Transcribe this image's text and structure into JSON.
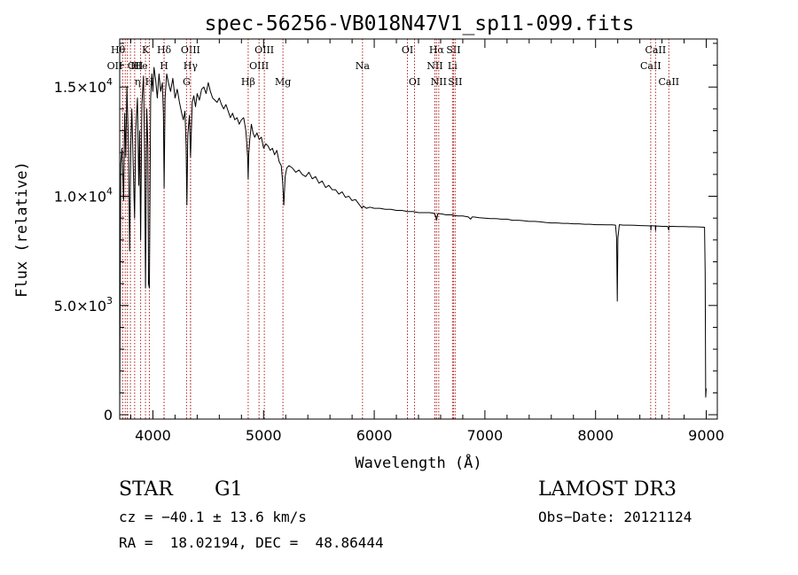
{
  "chart_data": {
    "type": "line",
    "title": "spec-56256-VB018N47V1_sp11-099.fits",
    "xlabel": "Wavelength (Å)",
    "ylabel": "Flux (relative)",
    "xlim": [
      3700,
      9100
    ],
    "ylim": [
      -200,
      17200
    ],
    "x_ticks": [
      4000,
      5000,
      6000,
      7000,
      8000,
      9000
    ],
    "x_tick_labels": [
      "4000",
      "5000",
      "6000",
      "7000",
      "8000",
      "9000"
    ],
    "y_ticks": [
      {
        "value": 0,
        "mantissa": "0",
        "exp": ""
      },
      {
        "value": 5000,
        "mantissa": "5.0×10",
        "exp": "3"
      },
      {
        "value": 10000,
        "mantissa": "1.0×10",
        "exp": "4"
      },
      {
        "value": 15000,
        "mantissa": "1.5×10",
        "exp": "4"
      }
    ],
    "series": [
      {
        "name": "spectrum",
        "points": [
          [
            3700,
            200
          ],
          [
            3710,
            11500
          ],
          [
            3720,
            12200
          ],
          [
            3735,
            9800
          ],
          [
            3745,
            13800
          ],
          [
            3755,
            11800
          ],
          [
            3765,
            15000
          ],
          [
            3780,
            12200
          ],
          [
            3790,
            7500
          ],
          [
            3800,
            12300
          ],
          [
            3810,
            14000
          ],
          [
            3820,
            11800
          ],
          [
            3835,
            9000
          ],
          [
            3845,
            13000
          ],
          [
            3860,
            14500
          ],
          [
            3872,
            10500
          ],
          [
            3880,
            13000
          ],
          [
            3889,
            8000
          ],
          [
            3900,
            14200
          ],
          [
            3915,
            15500
          ],
          [
            3925,
            12000
          ],
          [
            3933,
            5800
          ],
          [
            3945,
            14000
          ],
          [
            3955,
            12200
          ],
          [
            3960,
            6000
          ],
          [
            3968,
            5800
          ],
          [
            3980,
            14500
          ],
          [
            3990,
            15600
          ],
          [
            4000,
            14800
          ],
          [
            4010,
            15900
          ],
          [
            4025,
            15300
          ],
          [
            4040,
            14500
          ],
          [
            4055,
            15600
          ],
          [
            4070,
            14800
          ],
          [
            4085,
            15200
          ],
          [
            4095,
            13800
          ],
          [
            4101,
            10400
          ],
          [
            4110,
            14500
          ],
          [
            4125,
            15600
          ],
          [
            4140,
            15200
          ],
          [
            4160,
            14800
          ],
          [
            4180,
            15400
          ],
          [
            4200,
            14500
          ],
          [
            4220,
            14900
          ],
          [
            4240,
            14300
          ],
          [
            4260,
            13800
          ],
          [
            4275,
            13500
          ],
          [
            4290,
            13900
          ],
          [
            4300,
            12300
          ],
          [
            4307,
            9600
          ],
          [
            4315,
            12800
          ],
          [
            4330,
            13700
          ],
          [
            4340,
            11800
          ],
          [
            4355,
            14300
          ],
          [
            4370,
            14600
          ],
          [
            4385,
            14100
          ],
          [
            4400,
            14700
          ],
          [
            4420,
            14400
          ],
          [
            4440,
            14900
          ],
          [
            4460,
            15000
          ],
          [
            4480,
            14700
          ],
          [
            4500,
            15200
          ],
          [
            4520,
            14800
          ],
          [
            4540,
            14500
          ],
          [
            4560,
            14400
          ],
          [
            4580,
            14300
          ],
          [
            4600,
            14500
          ],
          [
            4620,
            14200
          ],
          [
            4640,
            14000
          ],
          [
            4660,
            14200
          ],
          [
            4680,
            13900
          ],
          [
            4700,
            13600
          ],
          [
            4720,
            13800
          ],
          [
            4740,
            13500
          ],
          [
            4760,
            13600
          ],
          [
            4780,
            13300
          ],
          [
            4800,
            13500
          ],
          [
            4820,
            13600
          ],
          [
            4840,
            13000
          ],
          [
            4850,
            12300
          ],
          [
            4856,
            11800
          ],
          [
            4861,
            10800
          ],
          [
            4866,
            11900
          ],
          [
            4875,
            12600
          ],
          [
            4890,
            13300
          ],
          [
            4905,
            12900
          ],
          [
            4920,
            12700
          ],
          [
            4940,
            12900
          ],
          [
            4960,
            12600
          ],
          [
            4980,
            12700
          ],
          [
            5000,
            12200
          ],
          [
            5020,
            12400
          ],
          [
            5040,
            12300
          ],
          [
            5060,
            12100
          ],
          [
            5080,
            12200
          ],
          [
            5100,
            11900
          ],
          [
            5120,
            12100
          ],
          [
            5140,
            11600
          ],
          [
            5160,
            11400
          ],
          [
            5172,
            10700
          ],
          [
            5183,
            9600
          ],
          [
            5195,
            10900
          ],
          [
            5210,
            11300
          ],
          [
            5230,
            11400
          ],
          [
            5260,
            11300
          ],
          [
            5290,
            11100
          ],
          [
            5320,
            11200
          ],
          [
            5350,
            11000
          ],
          [
            5380,
            10900
          ],
          [
            5410,
            11100
          ],
          [
            5440,
            10800
          ],
          [
            5470,
            10900
          ],
          [
            5500,
            10600
          ],
          [
            5530,
            10700
          ],
          [
            5560,
            10400
          ],
          [
            5590,
            10500
          ],
          [
            5620,
            10300
          ],
          [
            5650,
            10300
          ],
          [
            5680,
            10100
          ],
          [
            5710,
            10200
          ],
          [
            5740,
            9950
          ],
          [
            5770,
            10000
          ],
          [
            5800,
            9800
          ],
          [
            5830,
            9850
          ],
          [
            5860,
            9650
          ],
          [
            5890,
            9450
          ],
          [
            5900,
            9550
          ],
          [
            5930,
            9450
          ],
          [
            5960,
            9500
          ],
          [
            6000,
            9450
          ],
          [
            6050,
            9450
          ],
          [
            6100,
            9400
          ],
          [
            6150,
            9400
          ],
          [
            6200,
            9350
          ],
          [
            6250,
            9350
          ],
          [
            6300,
            9300
          ],
          [
            6350,
            9300
          ],
          [
            6400,
            9250
          ],
          [
            6450,
            9250
          ],
          [
            6500,
            9250
          ],
          [
            6540,
            9220
          ],
          [
            6555,
            9100
          ],
          [
            6563,
            8900
          ],
          [
            6575,
            9200
          ],
          [
            6600,
            9200
          ],
          [
            6650,
            9150
          ],
          [
            6700,
            9150
          ],
          [
            6750,
            9100
          ],
          [
            6800,
            9100
          ],
          [
            6850,
            9050
          ],
          [
            6870,
            8950
          ],
          [
            6885,
            9050
          ],
          [
            6900,
            9050
          ],
          [
            6950,
            9020
          ],
          [
            7000,
            9000
          ],
          [
            7050,
            8980
          ],
          [
            7100,
            8980
          ],
          [
            7150,
            8950
          ],
          [
            7200,
            8950
          ],
          [
            7250,
            8900
          ],
          [
            7300,
            8900
          ],
          [
            7350,
            8880
          ],
          [
            7400,
            8850
          ],
          [
            7450,
            8850
          ],
          [
            7500,
            8830
          ],
          [
            7550,
            8800
          ],
          [
            7600,
            8780
          ],
          [
            7650,
            8780
          ],
          [
            7700,
            8760
          ],
          [
            7750,
            8760
          ],
          [
            7800,
            8740
          ],
          [
            7850,
            8740
          ],
          [
            7900,
            8720
          ],
          [
            7950,
            8720
          ],
          [
            8000,
            8700
          ],
          [
            8050,
            8700
          ],
          [
            8100,
            8690
          ],
          [
            8150,
            8690
          ],
          [
            8180,
            8680
          ],
          [
            8190,
            8100
          ],
          [
            8196,
            5200
          ],
          [
            8202,
            8100
          ],
          [
            8215,
            8700
          ],
          [
            8250,
            8680
          ],
          [
            8300,
            8680
          ],
          [
            8350,
            8670
          ],
          [
            8400,
            8660
          ],
          [
            8450,
            8650
          ],
          [
            8498,
            8640
          ],
          [
            8500,
            8450
          ],
          [
            8502,
            8650
          ],
          [
            8540,
            8640
          ],
          [
            8542,
            8430
          ],
          [
            8545,
            8640
          ],
          [
            8600,
            8620
          ],
          [
            8650,
            8620
          ],
          [
            8662,
            8450
          ],
          [
            8665,
            8620
          ],
          [
            8700,
            8620
          ],
          [
            8750,
            8610
          ],
          [
            8800,
            8610
          ],
          [
            8850,
            8600
          ],
          [
            8900,
            8600
          ],
          [
            8950,
            8590
          ],
          [
            8985,
            8580
          ],
          [
            8990,
            6500
          ],
          [
            8995,
            800
          ],
          [
            9000,
            1200
          ]
        ]
      }
    ],
    "lines": [
      {
        "wave": 3727,
        "label": "OII",
        "row": 2,
        "align": "end"
      },
      {
        "wave": 3750,
        "label": "Hθ",
        "row": 1,
        "align": "end"
      },
      {
        "wave": 3770,
        "label": "OII",
        "row": 2,
        "align": "start"
      },
      {
        "wave": 3797,
        "label": "H",
        "row": 2,
        "align": "start"
      },
      {
        "wave": 3835,
        "label": "η",
        "row": 3,
        "align": "start"
      },
      {
        "wave": 3889,
        "label": "He",
        "row": 2,
        "align": "middle"
      },
      {
        "wave": 3933,
        "label": "K",
        "row": 1,
        "align": "middle"
      },
      {
        "wave": 3968,
        "label": "H",
        "row": 3,
        "align": "middle"
      },
      {
        "wave": 4101,
        "label": "Hδ",
        "row": 1,
        "align": "middle"
      },
      {
        "wave": 4101,
        "label": "H",
        "row": 2,
        "align": "middle"
      },
      {
        "wave": 4304,
        "label": "G",
        "row": 3,
        "align": "middle"
      },
      {
        "wave": 4340,
        "label": "OIII",
        "row": 1,
        "align": "middle"
      },
      {
        "wave": 4340,
        "label": "Hγ",
        "row": 2,
        "align": "middle"
      },
      {
        "wave": 4861,
        "label": "Hβ",
        "row": 3,
        "align": "middle"
      },
      {
        "wave": 4959,
        "label": "OIII",
        "row": 2,
        "align": "middle"
      },
      {
        "wave": 5007,
        "label": "OIII",
        "row": 1,
        "align": "middle"
      },
      {
        "wave": 5175,
        "label": "Mg",
        "row": 3,
        "align": "middle"
      },
      {
        "wave": 5894,
        "label": "Na",
        "row": 2,
        "align": "middle"
      },
      {
        "wave": 6300,
        "label": "OI",
        "row": 1,
        "align": "middle"
      },
      {
        "wave": 6364,
        "label": "OI",
        "row": 3,
        "align": "middle"
      },
      {
        "wave": 6548,
        "label": "NII",
        "row": 2,
        "align": "middle"
      },
      {
        "wave": 6563,
        "label": "Hα",
        "row": 1,
        "align": "middle"
      },
      {
        "wave": 6583,
        "label": "NII",
        "row": 3,
        "align": "middle"
      },
      {
        "wave": 6707,
        "label": "Li",
        "row": 2,
        "align": "middle"
      },
      {
        "wave": 6716,
        "label": "SII",
        "row": 1,
        "align": "middle"
      },
      {
        "wave": 6731,
        "label": "SII",
        "row": 3,
        "align": "middle"
      },
      {
        "wave": 8498,
        "label": "CaII",
        "row": 2,
        "align": "middle"
      },
      {
        "wave": 8542,
        "label": "CaII",
        "row": 1,
        "align": "middle"
      },
      {
        "wave": 8662,
        "label": "CaII",
        "row": 3,
        "align": "middle"
      }
    ]
  },
  "info": {
    "object_class": "STAR",
    "subclass": "G1",
    "survey": "LAMOST DR3",
    "cz": "cz = −40.1 ± 13.6 km/s",
    "obs_date": "Obs−Date: 20121124",
    "coords": "RA =  18.02194, DEC =  48.86444"
  }
}
